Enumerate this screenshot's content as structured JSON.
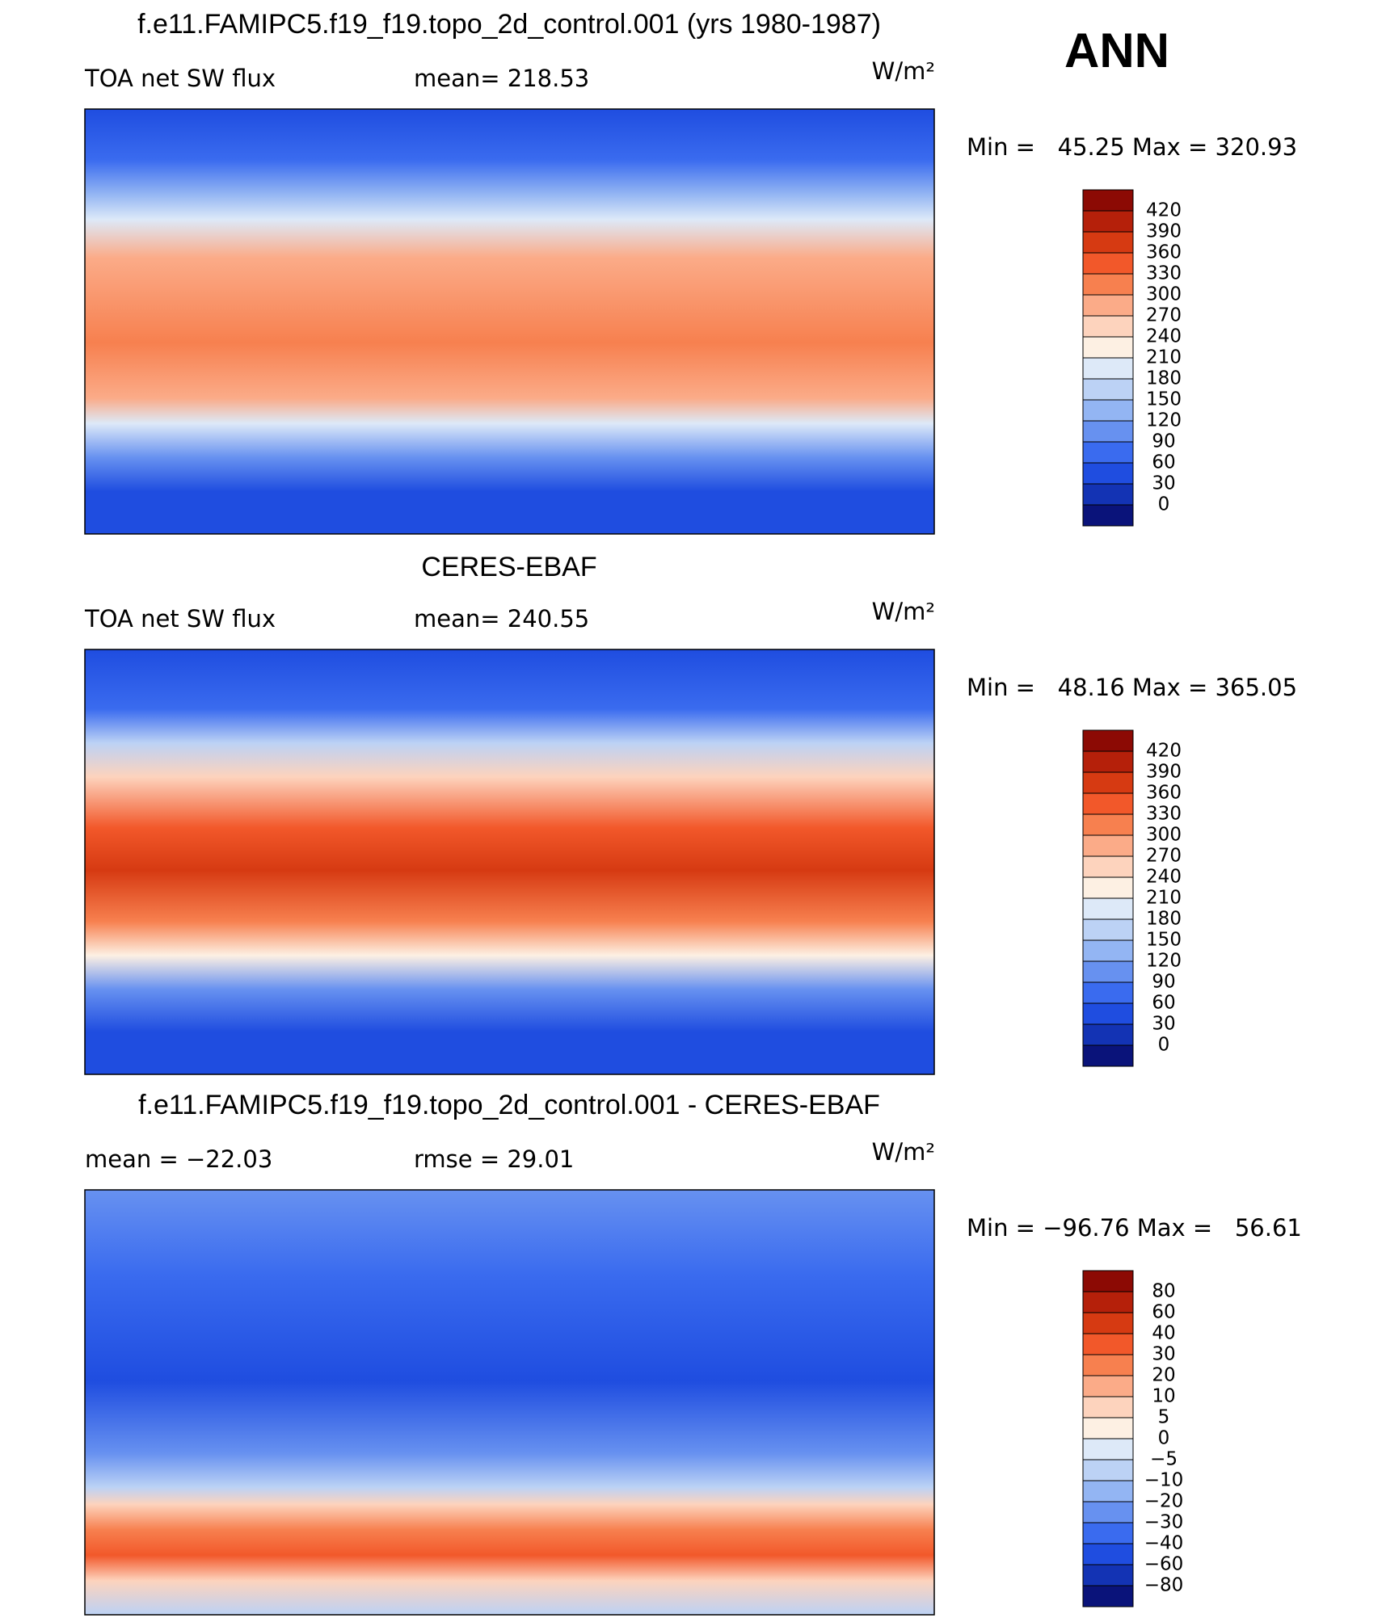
{
  "season": "ANN",
  "panels": [
    {
      "title": "f.e11.FAMIPC5.f19_f19.topo_2d_control.001 (yrs 1980-1987)",
      "left_label": "TOA net SW flux",
      "center_label": "mean= 218.53",
      "units": "W/m²",
      "minmax": "Min =   45.25 Max = 320.93",
      "colorbar": {
        "labels": [
          "420",
          "390",
          "360",
          "330",
          "300",
          "270",
          "240",
          "210",
          "180",
          "150",
          "120",
          "90",
          "60",
          "30",
          "0"
        ],
        "colors": [
          "#8c0a04",
          "#b5200a",
          "#d63a12",
          "#f2582a",
          "#f7804f",
          "#fbab88",
          "#fdd3bd",
          "#fdf0e3",
          "#dde9f8",
          "#bcd2f5",
          "#93b5f3",
          "#6791f0",
          "#3a6bef",
          "#1f4de0",
          "#1333b4",
          "#0a137a"
        ]
      }
    },
    {
      "title": "CERES-EBAF",
      "left_label": "TOA net SW flux",
      "center_label": "mean= 240.55",
      "units": "W/m²",
      "minmax": "Min =   48.16 Max = 365.05",
      "colorbar": {
        "labels": [
          "420",
          "390",
          "360",
          "330",
          "300",
          "270",
          "240",
          "210",
          "180",
          "150",
          "120",
          "90",
          "60",
          "30",
          "0"
        ],
        "colors": [
          "#8c0a04",
          "#b5200a",
          "#d63a12",
          "#f2582a",
          "#f7804f",
          "#fbab88",
          "#fdd3bd",
          "#fdf0e3",
          "#dde9f8",
          "#bcd2f5",
          "#93b5f3",
          "#6791f0",
          "#3a6bef",
          "#1f4de0",
          "#1333b4",
          "#0a137a"
        ]
      }
    },
    {
      "title": "f.e11.FAMIPC5.f19_f19.topo_2d_control.001 - CERES-EBAF",
      "left_label": "mean = −22.03",
      "center_label": "rmse =   29.01",
      "units": "W/m²",
      "minmax": "Min = −96.76 Max =   56.61",
      "colorbar": {
        "labels": [
          "80",
          "60",
          "40",
          "30",
          "20",
          "10",
          "5",
          "0",
          "−5",
          "−10",
          "−20",
          "−30",
          "−40",
          "−60",
          "−80"
        ],
        "colors": [
          "#8c0a04",
          "#b5200a",
          "#d63a12",
          "#f2582a",
          "#f7804f",
          "#fbab88",
          "#fdd3bd",
          "#fdf0e3",
          "#dde9f8",
          "#bcd2f5",
          "#93b5f3",
          "#6791f0",
          "#3a6bef",
          "#1f4de0",
          "#1333b4",
          "#0a137a"
        ]
      }
    }
  ]
}
